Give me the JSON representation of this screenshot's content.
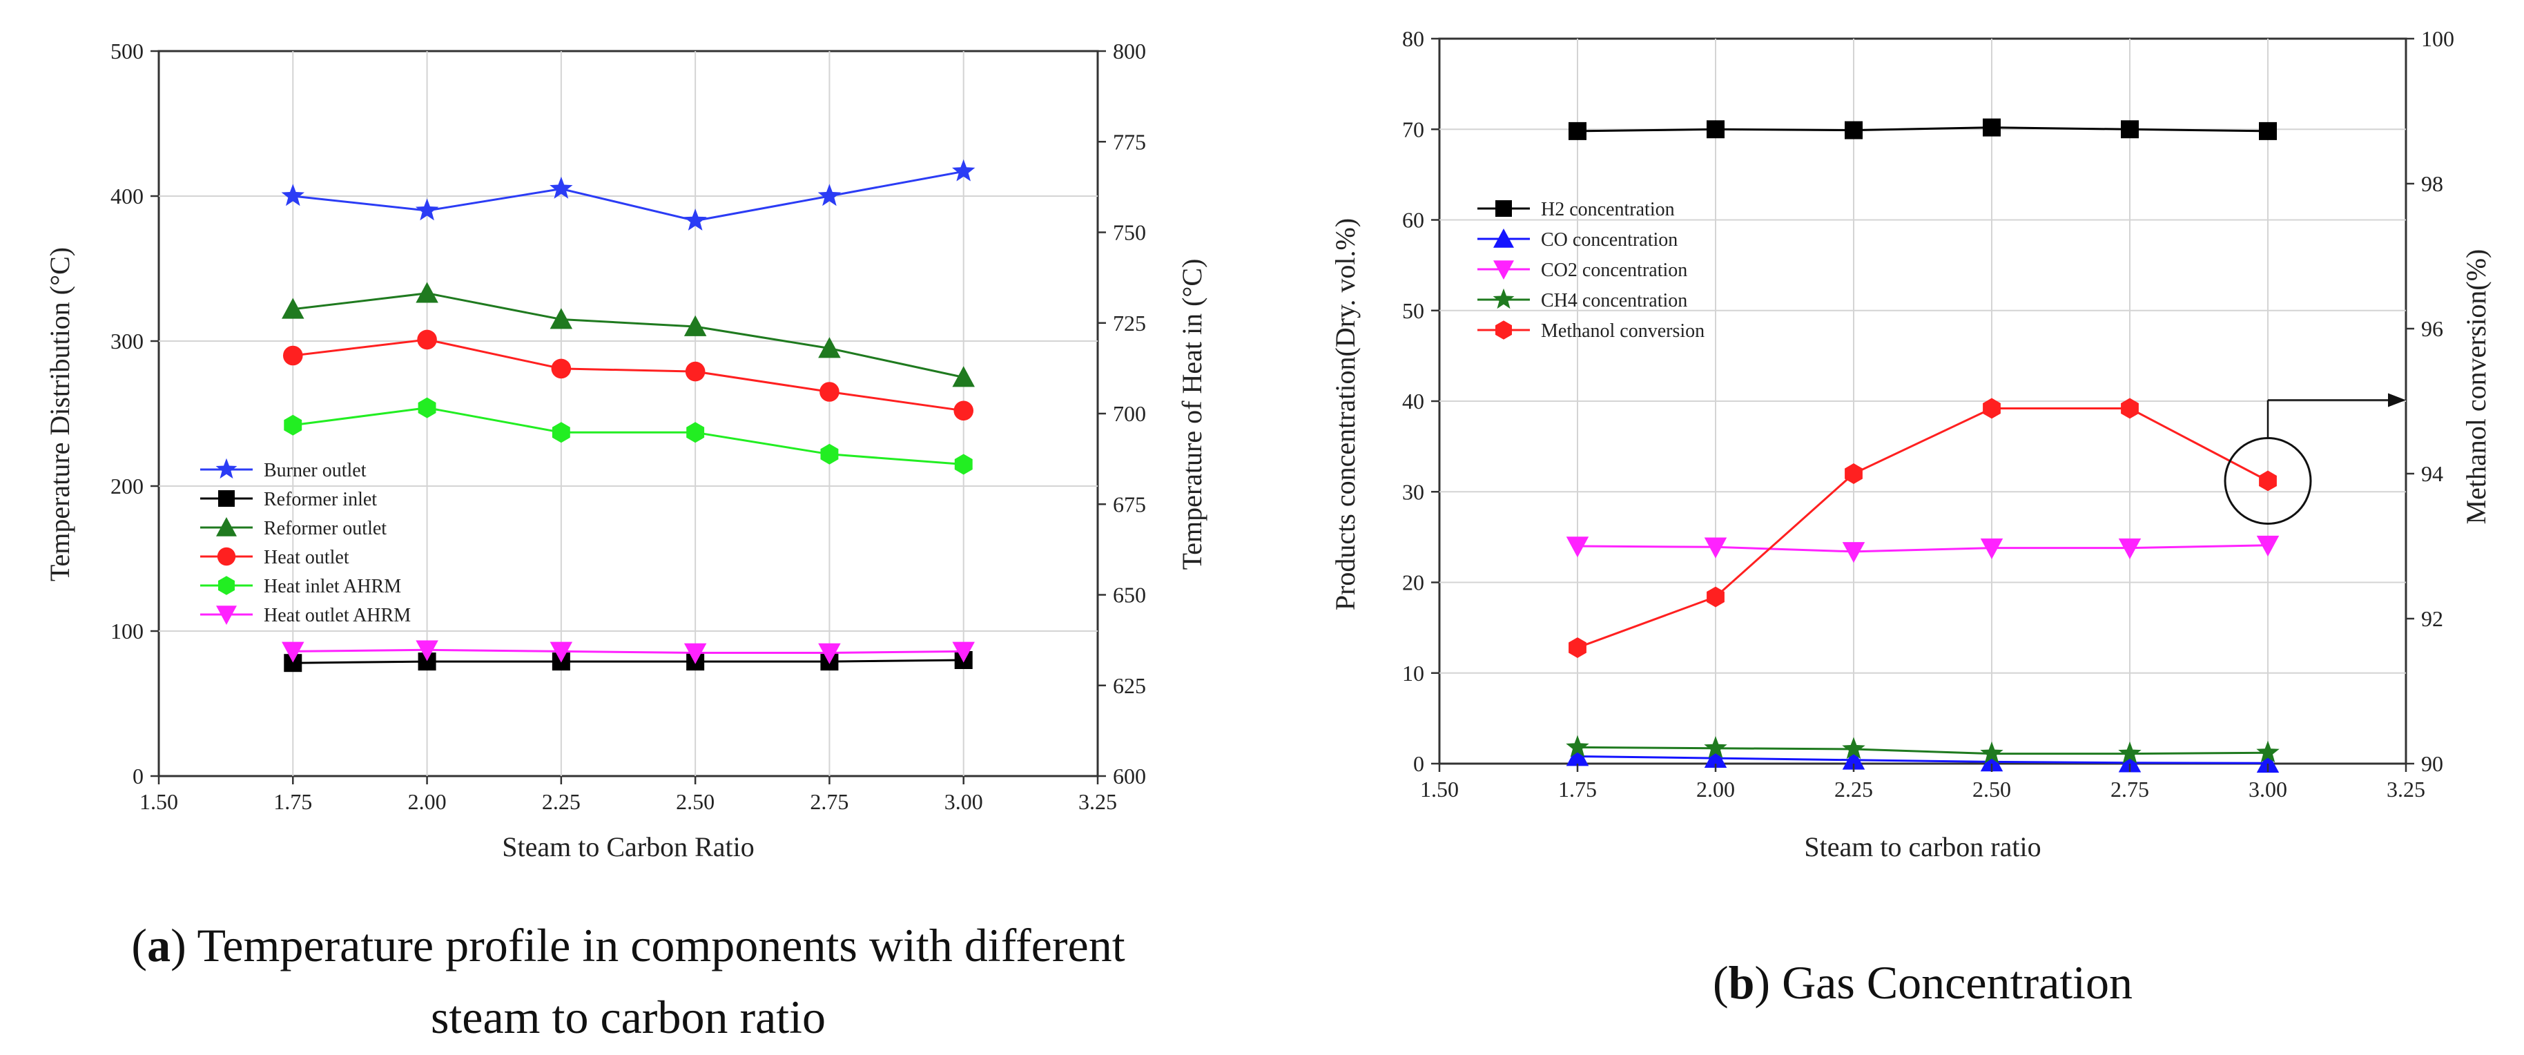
{
  "chart_data": [
    {
      "type": "line",
      "title": "",
      "xlabel": "Steam to Carbon Ratio",
      "ylabel": "Temperature Distribution (°C)",
      "y2label": "Temperature of Heat in (°C)",
      "xlim": [
        1.5,
        3.25
      ],
      "ylim": [
        0,
        500
      ],
      "y2lim": [
        600,
        800
      ],
      "x_ticks": [
        "1.50",
        "1.75",
        "2.00",
        "2.25",
        "2.50",
        "2.75",
        "3.00",
        "3.25"
      ],
      "y_ticks": [
        "0",
        "100",
        "200",
        "300",
        "400",
        "500"
      ],
      "y2_ticks": [
        "600",
        "625",
        "650",
        "675",
        "700",
        "725",
        "750",
        "775",
        "800"
      ],
      "grid": true,
      "legend_position": "left-middle",
      "x": [
        1.75,
        2.0,
        2.25,
        2.5,
        2.75,
        3.0
      ],
      "series": [
        {
          "name": "Burner outlet",
          "color": "#2b3cf5",
          "marker": "star",
          "values": [
            400,
            390,
            405,
            383,
            400,
            417
          ]
        },
        {
          "name": "Reformer inlet",
          "color": "#000000",
          "marker": "square",
          "values": [
            78,
            79,
            79,
            79,
            79,
            80
          ]
        },
        {
          "name": "Reformer outlet",
          "color": "#1f7a1f",
          "marker": "triangle-up",
          "values": [
            322,
            333,
            315,
            310,
            295,
            275
          ]
        },
        {
          "name": "Heat outlet",
          "color": "#ff2020",
          "marker": "circle",
          "values": [
            290,
            301,
            281,
            279,
            265,
            252
          ]
        },
        {
          "name": "Heat inlet AHRM",
          "color": "#22ee22",
          "marker": "hexagon",
          "values": [
            242,
            254,
            237,
            237,
            222,
            215
          ]
        },
        {
          "name": "Heat outlet AHRM",
          "color": "#ff22ff",
          "marker": "triangle-down",
          "values": [
            86,
            87,
            86,
            85,
            85,
            86
          ]
        }
      ],
      "caption_label": "a",
      "caption_line1": "Temperature profile in components with different",
      "caption_line2": "steam to carbon ratio"
    },
    {
      "type": "line",
      "title": "",
      "xlabel": "Steam to carbon ratio",
      "ylabel": "Products concentration(Dry. vol.%)",
      "y2label": "Methanol conversion(%)",
      "xlim": [
        1.5,
        3.25
      ],
      "ylim": [
        0,
        80
      ],
      "y2lim": [
        90,
        100
      ],
      "x_ticks": [
        "1.50",
        "1.75",
        "2.00",
        "2.25",
        "2.50",
        "2.75",
        "3.00",
        "3.25"
      ],
      "y_ticks": [
        "0",
        "10",
        "20",
        "30",
        "40",
        "50",
        "60",
        "70",
        "80"
      ],
      "y2_ticks": [
        "90",
        "92",
        "94",
        "96",
        "98",
        "100"
      ],
      "grid": true,
      "legend_position": "top-left",
      "x": [
        1.75,
        2.0,
        2.25,
        2.5,
        2.75,
        3.0
      ],
      "series": [
        {
          "name": "H2 concentration",
          "color": "#000000",
          "marker": "square",
          "values": [
            69.8,
            70.0,
            69.9,
            70.2,
            70.0,
            69.8
          ]
        },
        {
          "name": "CO concentration",
          "color": "#1414ff",
          "marker": "triangle-up",
          "values": [
            0.8,
            0.6,
            0.4,
            0.2,
            0.1,
            0.05
          ]
        },
        {
          "name": "CO2 concentration",
          "color": "#ff22ff",
          "marker": "triangle-down",
          "values": [
            24.0,
            23.9,
            23.4,
            23.8,
            23.8,
            24.1
          ]
        },
        {
          "name": "CH4 concentration",
          "color": "#1f7a1f",
          "marker": "star",
          "values": [
            1.8,
            1.7,
            1.6,
            1.1,
            1.1,
            1.2
          ]
        },
        {
          "name": "Methanol conversion",
          "color": "#ff2020",
          "marker": "hexagon",
          "axis": "right",
          "values": [
            91.6,
            92.3,
            94.0,
            94.9,
            94.9,
            93.9
          ]
        }
      ],
      "caption_label": "b",
      "caption_line1": "Gas Concentration"
    }
  ]
}
